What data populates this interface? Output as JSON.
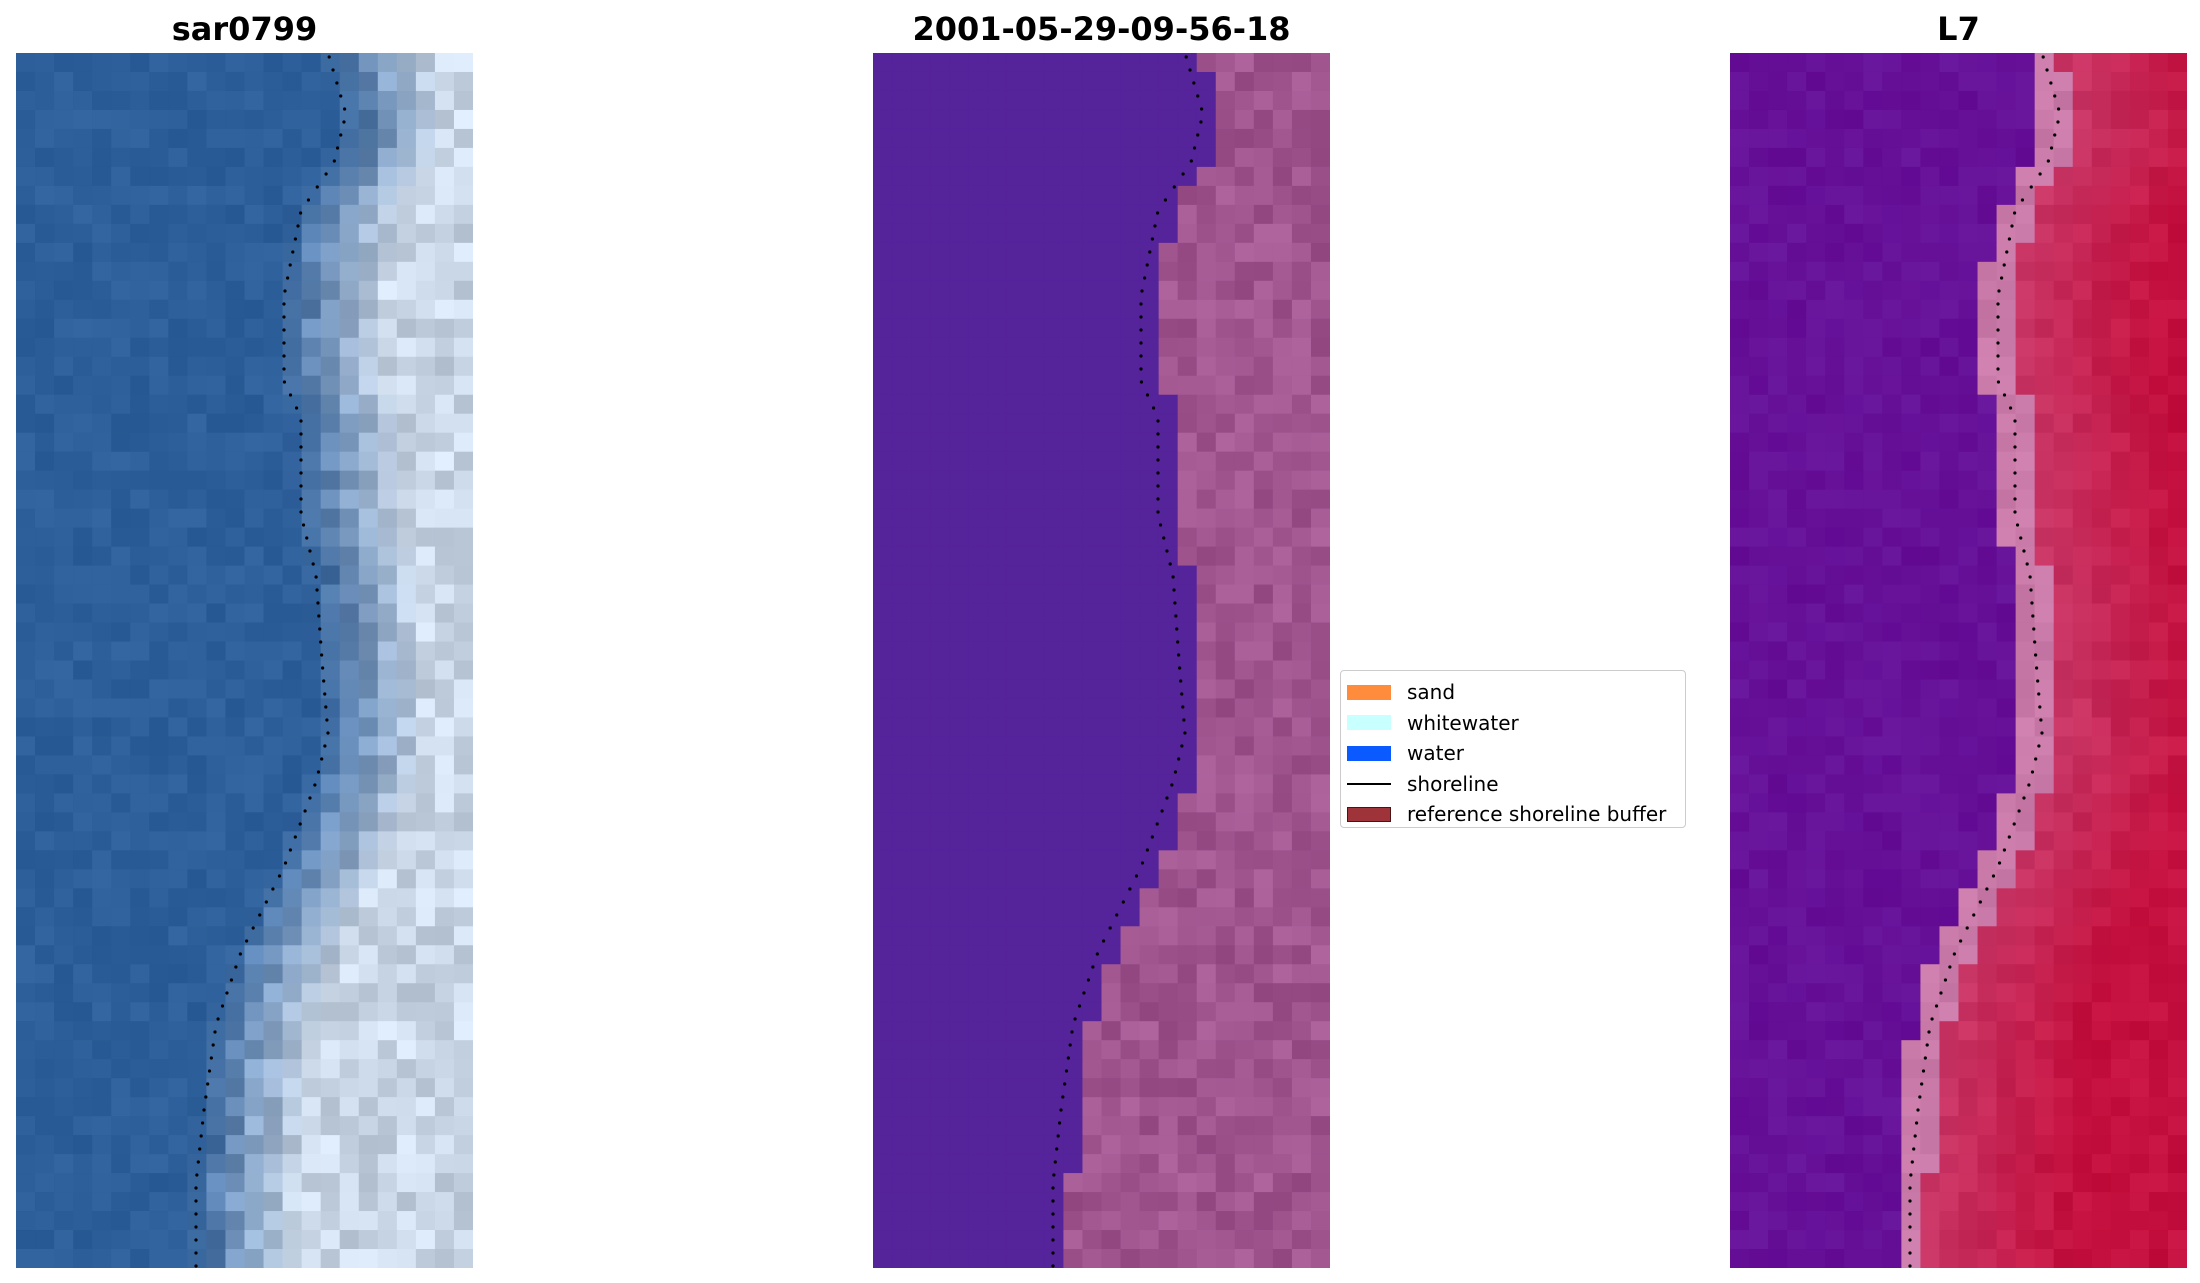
{
  "panels": [
    {
      "title": "sar0799",
      "kind": "rgb"
    },
    {
      "title": "2001-05-29-09-56-18",
      "kind": "classified"
    },
    {
      "title": "L7",
      "kind": "index"
    }
  ],
  "legend": {
    "items": [
      {
        "label": "sand",
        "color": "#ff8c3c",
        "type": "patch"
      },
      {
        "label": "whitewater",
        "color": "#c8ffff",
        "type": "patch"
      },
      {
        "label": "water",
        "color": "#0a5aff",
        "type": "patch"
      },
      {
        "label": "shoreline",
        "color": "#000000",
        "type": "line"
      },
      {
        "label": "reference shoreline buffer",
        "color": "#9e3339",
        "type": "patch"
      }
    ]
  },
  "colors": {
    "rgb_water": "#2d5f9a",
    "rgb_surf": "#c9d6e6",
    "classified_water": "#55239a",
    "classified_land": "#a0558f",
    "index_low": "#6a119a",
    "index_high": "#c4103e",
    "index_buffer": "#c97aa8",
    "shoreline": "#000000"
  }
}
